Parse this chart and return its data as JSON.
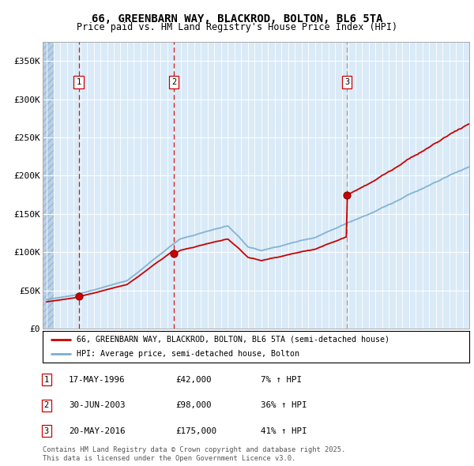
{
  "title_line1": "66, GREENBARN WAY, BLACKROD, BOLTON, BL6 5TA",
  "title_line2": "Price paid vs. HM Land Registry's House Price Index (HPI)",
  "ylabel_ticks": [
    "£0",
    "£50K",
    "£100K",
    "£150K",
    "£200K",
    "£250K",
    "£300K",
    "£350K"
  ],
  "ytick_values": [
    0,
    50000,
    100000,
    150000,
    200000,
    250000,
    300000,
    350000
  ],
  "ylim": [
    0,
    375000
  ],
  "xlim_start": 1993.7,
  "xlim_end": 2025.5,
  "bg_color": "#daeaf7",
  "hatch_color": "#b8d0e8",
  "grid_color": "#ffffff",
  "red_line_color": "#cc0000",
  "blue_line_color": "#7aadcf",
  "sale_marker_color": "#cc0000",
  "vline_color_red": "#cc0000",
  "vline_color_gray": "#999999",
  "sale1_year": 1996.38,
  "sale1_price": 42000,
  "sale2_year": 2003.5,
  "sale2_price": 98000,
  "sale3_year": 2016.38,
  "sale3_price": 175000,
  "legend_line1": "66, GREENBARN WAY, BLACKROD, BOLTON, BL6 5TA (semi-detached house)",
  "legend_line2": "HPI: Average price, semi-detached house, Bolton",
  "table_rows": [
    {
      "num": "1",
      "date": "17-MAY-1996",
      "price": "£42,000",
      "hpi": "7% ↑ HPI"
    },
    {
      "num": "2",
      "date": "30-JUN-2003",
      "price": "£98,000",
      "hpi": "36% ↑ HPI"
    },
    {
      "num": "3",
      "date": "20-MAY-2016",
      "price": "£175,000",
      "hpi": "41% ↑ HPI"
    }
  ],
  "footnote_line1": "Contains HM Land Registry data © Crown copyright and database right 2025.",
  "footnote_line2": "This data is licensed under the Open Government Licence v3.0."
}
